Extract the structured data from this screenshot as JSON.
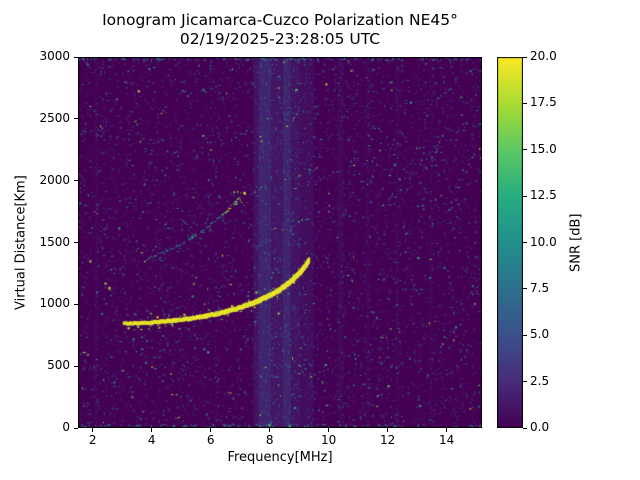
{
  "chart_data": {
    "type": "heatmap",
    "title": "Ionogram Jicamarca-Cuzco Polarization NE45°",
    "subtitle": "02/19/2025-23:28:05 UTC",
    "xlabel": "Frequency[MHz]",
    "ylabel": "Virtual Distance[Km]",
    "xlim": [
      1.5,
      15.2
    ],
    "ylim": [
      0,
      3000
    ],
    "x_ticks": [
      2,
      4,
      6,
      8,
      10,
      12,
      14
    ],
    "y_ticks": [
      0,
      500,
      1000,
      1500,
      2000,
      2500,
      3000
    ],
    "colorbar": {
      "label": "SNR [dB]",
      "min": 0.0,
      "max": 20.0,
      "ticks": [
        0.0,
        2.5,
        5.0,
        7.5,
        10.0,
        12.5,
        15.0,
        17.5,
        20.0
      ],
      "colormap": "viridis"
    },
    "viridis_anchors": [
      "#440154",
      "#472c7a",
      "#3b518b",
      "#2c718e",
      "#21908d",
      "#27ad81",
      "#5cc863",
      "#aadc32",
      "#fde725"
    ],
    "background_snr_db": 0,
    "series": [
      {
        "name": "main-echo-trace",
        "snr_db": 20,
        "style": "solid",
        "points": [
          [
            3.05,
            845
          ],
          [
            3.3,
            845
          ],
          [
            3.6,
            848
          ],
          [
            3.9,
            852
          ],
          [
            4.2,
            857
          ],
          [
            4.5,
            863
          ],
          [
            4.8,
            870
          ],
          [
            5.1,
            878
          ],
          [
            5.4,
            888
          ],
          [
            5.7,
            900
          ],
          [
            6.0,
            913
          ],
          [
            6.3,
            928
          ],
          [
            6.6,
            946
          ],
          [
            6.9,
            966
          ],
          [
            7.2,
            990
          ],
          [
            7.5,
            1016
          ],
          [
            7.8,
            1048
          ],
          [
            8.1,
            1084
          ],
          [
            8.4,
            1128
          ],
          [
            8.7,
            1182
          ],
          [
            9.0,
            1248
          ],
          [
            9.2,
            1308
          ],
          [
            9.35,
            1360
          ]
        ]
      },
      {
        "name": "second-hop-trace",
        "snr_db": 8,
        "style": "dotted",
        "points": [
          [
            3.8,
            1370
          ],
          [
            4.1,
            1395
          ],
          [
            4.4,
            1425
          ],
          [
            4.7,
            1458
          ],
          [
            5.0,
            1495
          ],
          [
            5.3,
            1535
          ],
          [
            5.6,
            1580
          ],
          [
            5.9,
            1632
          ],
          [
            6.2,
            1690
          ],
          [
            6.5,
            1755
          ],
          [
            6.8,
            1830
          ],
          [
            6.95,
            1875
          ]
        ]
      }
    ],
    "rfi_bands": [
      {
        "f0": 7.45,
        "f1": 7.62,
        "level": 0.18,
        "alpha": 0.3,
        "density": 0.02
      },
      {
        "f0": 7.62,
        "f1": 8.05,
        "level": 0.22,
        "alpha": 0.5,
        "density": 0.05
      },
      {
        "f0": 8.05,
        "f1": 8.45,
        "level": 0.2,
        "alpha": 0.32,
        "density": 0.03
      },
      {
        "f0": 8.45,
        "f1": 8.72,
        "level": 0.22,
        "alpha": 0.5,
        "density": 0.05
      },
      {
        "f0": 8.72,
        "f1": 9.05,
        "level": 0.2,
        "alpha": 0.28,
        "density": 0.025
      },
      {
        "f0": 9.05,
        "f1": 9.5,
        "level": 0.18,
        "alpha": 0.2,
        "density": 0.02
      },
      {
        "f0": 10.3,
        "f1": 10.5,
        "level": 0.16,
        "alpha": 0.15,
        "density": 0.015
      },
      {
        "f0": 11.25,
        "f1": 11.4,
        "level": 0.15,
        "alpha": 0.1,
        "density": 0.012
      },
      {
        "f0": 12.25,
        "f1": 12.4,
        "level": 0.15,
        "alpha": 0.1,
        "density": 0.012
      },
      {
        "f0": 13.4,
        "f1": 13.55,
        "level": 0.15,
        "alpha": 0.08,
        "density": 0.01
      },
      {
        "f0": 2.05,
        "f1": 2.2,
        "level": 0.15,
        "alpha": 0.1,
        "density": 0.012
      }
    ],
    "hot_spots": [
      {
        "f": 6.9,
        "d": 1860,
        "count": 14,
        "spread_f": 0.25,
        "spread_d": 60,
        "v_min": 0.6,
        "v_max": 1.0
      },
      {
        "f": 1.75,
        "d": 25,
        "count": 10,
        "spread_f": 0.22,
        "spread_d": 35,
        "v_min": 0.3,
        "v_max": 0.7
      },
      {
        "f": 8.4,
        "d": 15,
        "count": 20,
        "spread_f": 0.8,
        "spread_d": 25,
        "v_min": 0.3,
        "v_max": 0.8
      }
    ],
    "noise": {
      "speckle_count": 6500,
      "seed": 12345,
      "edge_top_count": 180,
      "edge_bottom_count": 120
    }
  }
}
